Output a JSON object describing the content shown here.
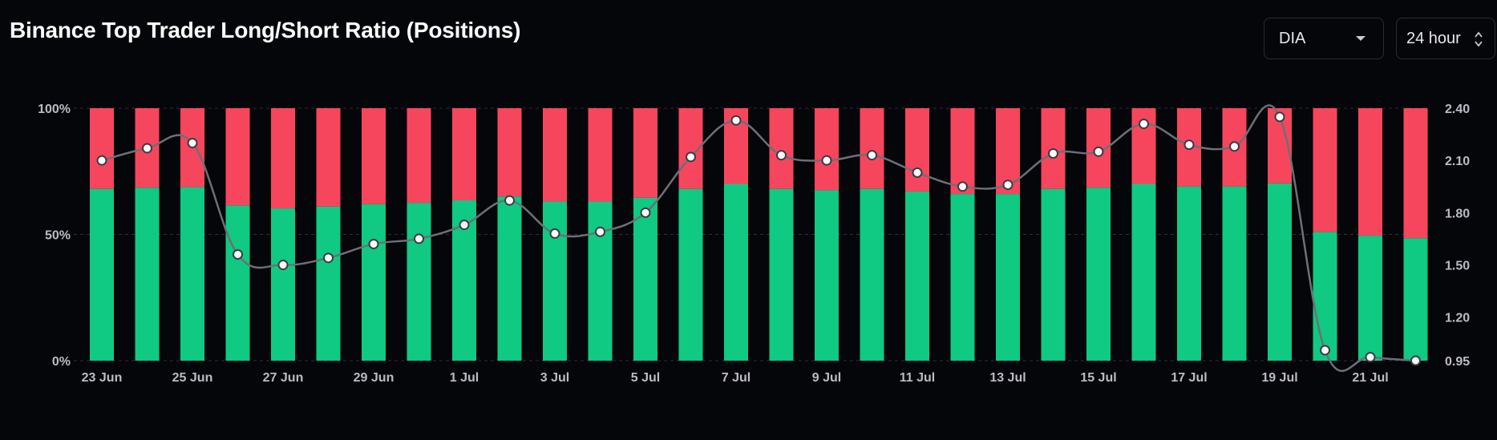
{
  "header": {
    "title": "Binance Top Trader Long/Short Ratio (Positions)"
  },
  "controls": {
    "asset_value": "DIA",
    "period_value": "24 hour"
  },
  "colors": {
    "long": "#10c982",
    "short": "#f6465d",
    "line": "#6d6f78",
    "marker": "#ffffff",
    "background": "#05060a"
  },
  "chart_data": {
    "type": "bar",
    "stacked": true,
    "categories": [
      "23 Jun",
      "24 Jun",
      "25 Jun",
      "26 Jun",
      "27 Jun",
      "28 Jun",
      "29 Jun",
      "30 Jun",
      "1 Jul",
      "2 Jul",
      "3 Jul",
      "4 Jul",
      "5 Jul",
      "6 Jul",
      "7 Jul",
      "8 Jul",
      "9 Jul",
      "10 Jul",
      "11 Jul",
      "12 Jul",
      "13 Jul",
      "14 Jul",
      "15 Jul",
      "16 Jul",
      "17 Jul",
      "18 Jul",
      "19 Jul",
      "20 Jul",
      "21 Jul",
      "22 Jul"
    ],
    "x_tick_labels": [
      "23 Jun",
      "25 Jun",
      "27 Jun",
      "29 Jun",
      "1 Jul",
      "3 Jul",
      "5 Jul",
      "7 Jul",
      "9 Jul",
      "11 Jul",
      "13 Jul",
      "15 Jul",
      "17 Jul",
      "19 Jul",
      "21 Jul"
    ],
    "series": [
      {
        "values": [
          68,
          68.5,
          68.7,
          61.5,
          60.3,
          61,
          62,
          62.5,
          63.5,
          65,
          63,
          63,
          64.5,
          68,
          70,
          68,
          67.5,
          68,
          67,
          66,
          66,
          68,
          68.5,
          70,
          69,
          69,
          70.2,
          51,
          49.5,
          48.5
        ]
      },
      {
        "values": [
          32,
          31.5,
          31.3,
          38.5,
          39.7,
          39,
          38,
          37.5,
          36.5,
          35,
          37,
          37,
          35.5,
          32,
          30,
          32,
          32.5,
          32,
          33,
          34,
          34,
          32,
          31.5,
          30,
          31,
          31,
          29.8,
          49,
          50.5,
          51.5
        ]
      },
      {
        "axis": "right",
        "type": "line",
        "values": [
          2.1,
          2.17,
          2.2,
          1.56,
          1.5,
          1.54,
          1.62,
          1.65,
          1.73,
          1.87,
          1.68,
          1.69,
          1.8,
          2.12,
          2.33,
          2.13,
          2.1,
          2.13,
          2.03,
          1.95,
          1.96,
          2.14,
          2.15,
          2.31,
          2.19,
          2.18,
          2.35,
          1.01,
          0.97,
          0.95
        ]
      }
    ],
    "y_left": {
      "ticks": [
        "0%",
        "50%",
        "100%"
      ],
      "ylim": [
        0,
        100
      ]
    },
    "y_right": {
      "ticks": [
        "0.95",
        "1.20",
        "1.50",
        "1.80",
        "2.10",
        "2.40"
      ],
      "ylim": [
        0.95,
        2.4
      ]
    },
    "grid": true,
    "legend": "none"
  }
}
